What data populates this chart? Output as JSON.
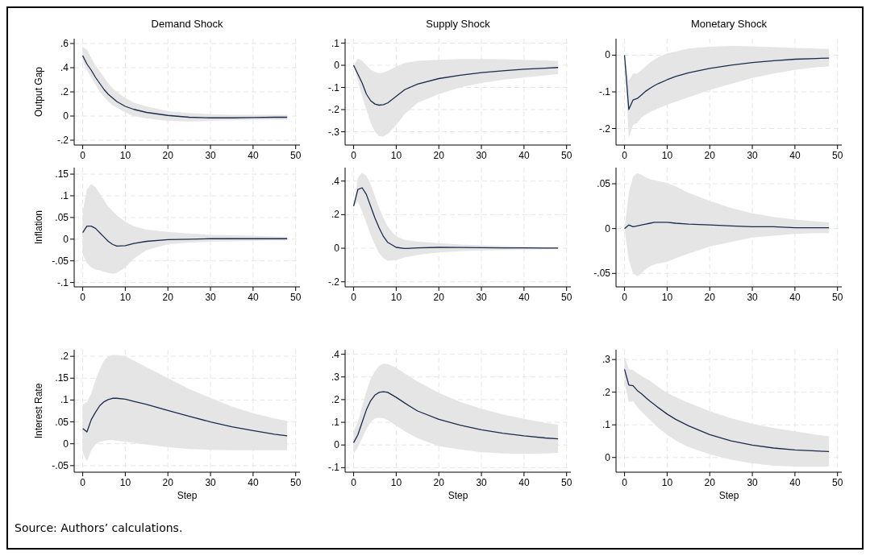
{
  "chart_data": [
    {
      "type": "line",
      "title": "Demand Shock",
      "ylabel": "Output Gap",
      "x": [
        0,
        1,
        2,
        3,
        4,
        5,
        6,
        7,
        8,
        10,
        12,
        15,
        20,
        25,
        30,
        35,
        40,
        45,
        48
      ],
      "xlim": [
        -2,
        51
      ],
      "xticks": [
        0,
        10,
        20,
        30,
        40,
        50
      ],
      "ylim": [
        -0.24,
        0.64
      ],
      "yticks": [
        {
          "value": -0.2,
          "label": "-.2"
        },
        {
          "value": 0,
          "label": "0"
        },
        {
          "value": 0.2,
          "label": ".2"
        },
        {
          "value": 0.4,
          "label": ".4"
        },
        {
          "value": 0.6,
          "label": ".6"
        }
      ],
      "grid": true,
      "series": [
        {
          "color": "#1a2b4c",
          "values": [
            0.5,
            0.43,
            0.38,
            0.32,
            0.27,
            0.22,
            0.18,
            0.15,
            0.12,
            0.08,
            0.055,
            0.03,
            0.005,
            -0.01,
            -0.015,
            -0.015,
            -0.012,
            -0.01,
            -0.01
          ],
          "lower": [
            0.45,
            0.38,
            0.32,
            0.26,
            0.2,
            0.16,
            0.12,
            0.09,
            0.07,
            0.03,
            0.0,
            -0.02,
            -0.04,
            -0.045,
            -0.04,
            -0.035,
            -0.03,
            -0.03,
            -0.03
          ],
          "upper": [
            0.57,
            0.55,
            0.48,
            0.42,
            0.37,
            0.32,
            0.27,
            0.23,
            0.2,
            0.15,
            0.11,
            0.08,
            0.04,
            0.025,
            0.015,
            0.01,
            0.01,
            0.01,
            0.01
          ]
        }
      ]
    },
    {
      "type": "line",
      "title": "Supply Shock",
      "x": [
        0,
        1,
        2,
        3,
        4,
        5,
        6,
        7,
        8,
        10,
        12,
        15,
        20,
        25,
        30,
        35,
        40,
        45,
        48
      ],
      "xlim": [
        -2,
        51
      ],
      "xticks": [
        0,
        10,
        20,
        30,
        40,
        50
      ],
      "ylim": [
        -0.36,
        0.12
      ],
      "yticks": [
        {
          "value": -0.3,
          "label": "-.3"
        },
        {
          "value": -0.2,
          "label": "-.2"
        },
        {
          "value": -0.1,
          "label": "-.1"
        },
        {
          "value": 0,
          "label": "0"
        },
        {
          "value": 0.1,
          "label": ".1"
        }
      ],
      "grid": true,
      "series": [
        {
          "color": "#1a2b4c",
          "values": [
            0,
            -0.04,
            -0.08,
            -0.13,
            -0.16,
            -0.175,
            -0.18,
            -0.178,
            -0.17,
            -0.14,
            -0.11,
            -0.085,
            -0.06,
            -0.045,
            -0.033,
            -0.025,
            -0.018,
            -0.013,
            -0.01
          ],
          "lower": [
            0,
            -0.07,
            -0.14,
            -0.2,
            -0.26,
            -0.3,
            -0.32,
            -0.322,
            -0.31,
            -0.27,
            -0.22,
            -0.17,
            -0.13,
            -0.1,
            -0.08,
            -0.065,
            -0.055,
            -0.045,
            -0.04
          ],
          "upper": [
            0,
            0.03,
            0.02,
            0,
            -0.02,
            -0.03,
            -0.035,
            -0.033,
            -0.025,
            -0.005,
            0.01,
            0.02,
            0.025,
            0.028,
            0.028,
            0.027,
            0.025,
            0.022,
            0.02
          ]
        }
      ]
    },
    {
      "type": "line",
      "title": "Monetary Shock",
      "x": [
        0,
        1,
        2,
        3,
        4,
        5,
        6,
        7,
        8,
        10,
        12,
        15,
        20,
        25,
        30,
        35,
        40,
        45,
        48
      ],
      "xlim": [
        -2,
        51
      ],
      "xticks": [
        0,
        10,
        20,
        30,
        40,
        50
      ],
      "ylim": [
        -0.245,
        0.045
      ],
      "yticks": [
        {
          "value": -0.2,
          "label": "-.2"
        },
        {
          "value": -0.1,
          "label": "-.1"
        },
        {
          "value": 0,
          "label": "0"
        }
      ],
      "grid": true,
      "series": [
        {
          "color": "#1a2b4c",
          "values": [
            0,
            -0.148,
            -0.122,
            -0.118,
            -0.108,
            -0.098,
            -0.09,
            -0.083,
            -0.077,
            -0.067,
            -0.058,
            -0.048,
            -0.036,
            -0.027,
            -0.02,
            -0.015,
            -0.011,
            -0.009,
            -0.008
          ],
          "lower": [
            0,
            -0.225,
            -0.19,
            -0.185,
            -0.17,
            -0.162,
            -0.155,
            -0.15,
            -0.145,
            -0.135,
            -0.127,
            -0.115,
            -0.095,
            -0.078,
            -0.062,
            -0.05,
            -0.04,
            -0.033,
            -0.03
          ],
          "upper": [
            0,
            -0.07,
            -0.05,
            -0.05,
            -0.04,
            -0.03,
            -0.02,
            -0.012,
            -0.005,
            0.005,
            0.01,
            0.018,
            0.023,
            0.025,
            0.024,
            0.022,
            0.02,
            0.018,
            0.017
          ]
        }
      ]
    },
    {
      "type": "line",
      "ylabel": "Inflation",
      "x": [
        0,
        1,
        2,
        3,
        4,
        5,
        6,
        7,
        8,
        10,
        12,
        15,
        20,
        25,
        30,
        35,
        40,
        45,
        48
      ],
      "xlim": [
        -2,
        51
      ],
      "xticks": [
        0,
        10,
        20,
        30,
        40,
        50
      ],
      "ylim": [
        -0.11,
        0.165
      ],
      "yticks": [
        {
          "value": -0.1,
          "label": "-.1"
        },
        {
          "value": -0.05,
          "label": "-.05"
        },
        {
          "value": 0,
          "label": "0"
        },
        {
          "value": 0.05,
          "label": ".05"
        },
        {
          "value": 0.1,
          "label": ".1"
        },
        {
          "value": 0.15,
          "label": ".15"
        }
      ],
      "grid": true,
      "series": [
        {
          "color": "#1a2b4c",
          "values": [
            0.015,
            0.03,
            0.03,
            0.025,
            0.015,
            0.005,
            -0.005,
            -0.012,
            -0.016,
            -0.015,
            -0.01,
            -0.005,
            -0.001,
            0,
            0.001,
            0.001,
            0.001,
            0.001,
            0.001
          ],
          "lower": [
            -0.035,
            -0.055,
            -0.065,
            -0.07,
            -0.072,
            -0.075,
            -0.078,
            -0.08,
            -0.078,
            -0.065,
            -0.045,
            -0.025,
            -0.012,
            -0.008,
            -0.006,
            -0.005,
            -0.004,
            -0.003,
            -0.003
          ],
          "upper": [
            0.065,
            0.115,
            0.127,
            0.12,
            0.105,
            0.09,
            0.075,
            0.065,
            0.055,
            0.04,
            0.03,
            0.022,
            0.017,
            0.013,
            0.01,
            0.009,
            0.008,
            0.006,
            0.005
          ]
        }
      ]
    },
    {
      "type": "line",
      "x": [
        0,
        1,
        2,
        3,
        4,
        5,
        6,
        7,
        8,
        10,
        12,
        15,
        20,
        25,
        30,
        35,
        40,
        45,
        48
      ],
      "xlim": [
        -2,
        51
      ],
      "xticks": [
        0,
        10,
        20,
        30,
        40,
        50
      ],
      "ylim": [
        -0.23,
        0.48
      ],
      "yticks": [
        {
          "value": -0.2,
          "label": "-.2"
        },
        {
          "value": 0,
          "label": "0"
        },
        {
          "value": 0.2,
          "label": ".2"
        },
        {
          "value": 0.4,
          "label": ".4"
        }
      ],
      "grid": true,
      "series": [
        {
          "color": "#1a2b4c",
          "values": [
            0.25,
            0.35,
            0.36,
            0.32,
            0.25,
            0.18,
            0.12,
            0.07,
            0.035,
            0.005,
            -0.002,
            0.002,
            0.005,
            0.004,
            0.003,
            0.002,
            0.002,
            0.001,
            0.001
          ],
          "lower": [
            0.25,
            0.28,
            0.22,
            0.15,
            0.08,
            0.02,
            -0.03,
            -0.06,
            -0.075,
            -0.07,
            -0.055,
            -0.04,
            -0.025,
            -0.018,
            -0.013,
            -0.01,
            -0.008,
            -0.006,
            -0.005
          ],
          "upper": [
            0.25,
            0.42,
            0.45,
            0.43,
            0.38,
            0.31,
            0.24,
            0.18,
            0.13,
            0.07,
            0.05,
            0.04,
            0.03,
            0.022,
            0.017,
            0.013,
            0.01,
            0.008,
            0.007
          ]
        }
      ]
    },
    {
      "type": "line",
      "x": [
        0,
        1,
        2,
        3,
        4,
        5,
        6,
        7,
        8,
        10,
        12,
        15,
        20,
        25,
        30,
        35,
        40,
        45,
        48
      ],
      "xlim": [
        -2,
        51
      ],
      "xticks": [
        0,
        10,
        20,
        30,
        40,
        50
      ],
      "ylim": [
        -0.065,
        0.068
      ],
      "yticks": [
        {
          "value": -0.05,
          "label": "-.05"
        },
        {
          "value": 0,
          "label": "0"
        },
        {
          "value": 0.05,
          "label": ".05"
        }
      ],
      "grid": true,
      "series": [
        {
          "color": "#1a2b4c",
          "values": [
            0,
            0.004,
            0.002,
            0.003,
            0.004,
            0.005,
            0.006,
            0.007,
            0.007,
            0.007,
            0.006,
            0.005,
            0.004,
            0.003,
            0.002,
            0.002,
            0.001,
            0.001,
            0.001
          ],
          "lower": [
            0,
            -0.035,
            -0.05,
            -0.053,
            -0.05,
            -0.045,
            -0.042,
            -0.04,
            -0.039,
            -0.037,
            -0.033,
            -0.028,
            -0.02,
            -0.015,
            -0.01,
            -0.008,
            -0.006,
            -0.005,
            -0.005
          ],
          "upper": [
            0,
            0.04,
            0.058,
            0.062,
            0.06,
            0.057,
            0.055,
            0.054,
            0.053,
            0.051,
            0.047,
            0.04,
            0.031,
            0.023,
            0.017,
            0.013,
            0.01,
            0.008,
            0.007
          ]
        }
      ]
    },
    {
      "type": "line",
      "ylabel": "Interest Rate",
      "xlabel": "Step",
      "x": [
        0,
        1,
        2,
        3,
        4,
        5,
        6,
        7,
        8,
        10,
        12,
        15,
        20,
        25,
        30,
        35,
        40,
        45,
        48
      ],
      "xlim": [
        -2,
        51
      ],
      "xticks": [
        0,
        10,
        20,
        30,
        40,
        50
      ],
      "ylim": [
        -0.065,
        0.215
      ],
      "yticks": [
        {
          "value": -0.05,
          "label": "-.05"
        },
        {
          "value": 0,
          "label": "0"
        },
        {
          "value": 0.05,
          "label": ".05"
        },
        {
          "value": 0.1,
          "label": ".1"
        },
        {
          "value": 0.15,
          "label": ".15"
        },
        {
          "value": 0.2,
          "label": ".2"
        }
      ],
      "grid": true,
      "series": [
        {
          "color": "#1a2b4c",
          "values": [
            0.035,
            0.027,
            0.055,
            0.072,
            0.087,
            0.096,
            0.101,
            0.104,
            0.104,
            0.102,
            0.097,
            0.09,
            0.076,
            0.063,
            0.05,
            0.039,
            0.03,
            0.022,
            0.018
          ],
          "lower": [
            -0.02,
            -0.04,
            -0.015,
            -0.002,
            0.004,
            0.007,
            0.008,
            0.008,
            0.007,
            0.005,
            0.002,
            -0.002,
            -0.008,
            -0.012,
            -0.014,
            -0.015,
            -0.015,
            -0.015,
            -0.015
          ],
          "upper": [
            0.09,
            0.095,
            0.115,
            0.145,
            0.17,
            0.19,
            0.2,
            0.203,
            0.203,
            0.2,
            0.19,
            0.175,
            0.15,
            0.125,
            0.105,
            0.085,
            0.07,
            0.058,
            0.052
          ]
        }
      ]
    },
    {
      "type": "line",
      "xlabel": "Step",
      "x": [
        0,
        1,
        2,
        3,
        4,
        5,
        6,
        7,
        8,
        10,
        12,
        15,
        20,
        25,
        30,
        35,
        40,
        45,
        48
      ],
      "xlim": [
        -2,
        51
      ],
      "xticks": [
        0,
        10,
        20,
        30,
        40,
        50
      ],
      "ylim": [
        -0.12,
        0.42
      ],
      "yticks": [
        {
          "value": -0.1,
          "label": "-.1"
        },
        {
          "value": 0,
          "label": "0"
        },
        {
          "value": 0.1,
          "label": ".1"
        },
        {
          "value": 0.2,
          "label": ".2"
        },
        {
          "value": 0.3,
          "label": ".3"
        },
        {
          "value": 0.4,
          "label": ".4"
        }
      ],
      "grid": true,
      "series": [
        {
          "color": "#1a2b4c",
          "values": [
            0.01,
            0.045,
            0.1,
            0.155,
            0.195,
            0.22,
            0.232,
            0.235,
            0.232,
            0.21,
            0.185,
            0.15,
            0.113,
            0.087,
            0.067,
            0.052,
            0.04,
            0.031,
            0.027
          ],
          "lower": [
            -0.04,
            -0.01,
            0.03,
            0.07,
            0.1,
            0.117,
            0.12,
            0.118,
            0.11,
            0.085,
            0.06,
            0.03,
            -0.005,
            -0.02,
            -0.032,
            -0.037,
            -0.038,
            -0.037,
            -0.035
          ],
          "upper": [
            0.06,
            0.1,
            0.17,
            0.235,
            0.29,
            0.325,
            0.35,
            0.358,
            0.357,
            0.34,
            0.315,
            0.28,
            0.23,
            0.19,
            0.16,
            0.135,
            0.115,
            0.098,
            0.09
          ]
        }
      ]
    },
    {
      "type": "line",
      "xlabel": "Step",
      "annotations": [
        "Source: Authors’ calculations."
      ],
      "x": [
        0,
        1,
        2,
        3,
        4,
        5,
        6,
        7,
        8,
        10,
        12,
        15,
        20,
        25,
        30,
        35,
        40,
        45,
        48
      ],
      "xlim": [
        -2,
        51
      ],
      "xticks": [
        0,
        10,
        20,
        30,
        40,
        50
      ],
      "ylim": [
        -0.045,
        0.33
      ],
      "yticks": [
        {
          "value": 0,
          "label": "0"
        },
        {
          "value": 0.1,
          "label": ".1"
        },
        {
          "value": 0.2,
          "label": ".2"
        },
        {
          "value": 0.3,
          "label": ".3"
        }
      ],
      "grid": true,
      "series": [
        {
          "color": "#1a2b4c",
          "values": [
            0.27,
            0.222,
            0.22,
            0.205,
            0.195,
            0.183,
            0.172,
            0.162,
            0.152,
            0.133,
            0.117,
            0.097,
            0.07,
            0.051,
            0.038,
            0.029,
            0.023,
            0.02,
            0.018
          ],
          "lower": [
            0.23,
            0.17,
            0.172,
            0.155,
            0.14,
            0.127,
            0.115,
            0.102,
            0.09,
            0.07,
            0.052,
            0.032,
            0.01,
            -0.007,
            -0.018,
            -0.025,
            -0.028,
            -0.028,
            -0.028
          ],
          "upper": [
            0.31,
            0.27,
            0.268,
            0.258,
            0.25,
            0.242,
            0.235,
            0.225,
            0.215,
            0.198,
            0.185,
            0.168,
            0.142,
            0.12,
            0.103,
            0.09,
            0.08,
            0.07,
            0.065
          ]
        }
      ]
    }
  ]
}
